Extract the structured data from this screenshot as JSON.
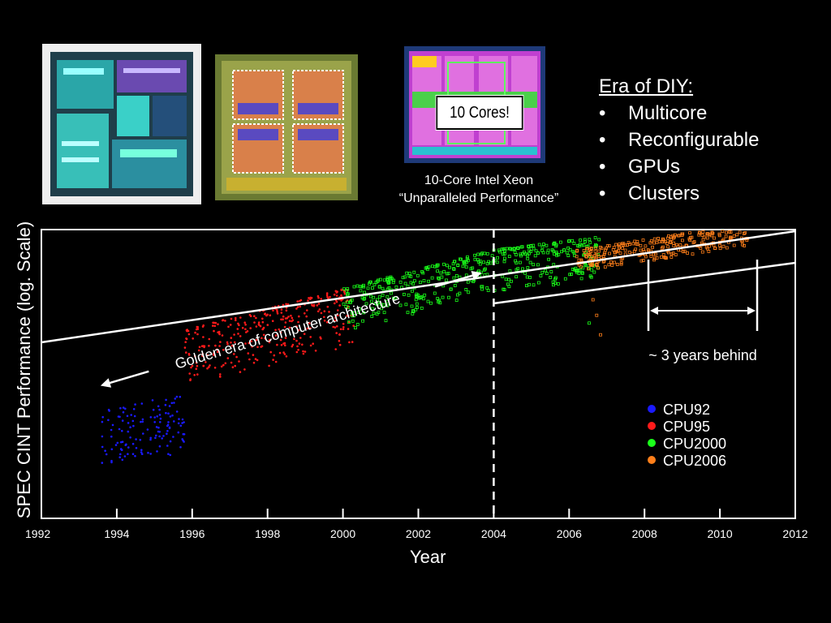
{
  "images": {
    "xeon_caption_line1": "10-Core Intel Xeon",
    "xeon_caption_line2": "“Unparalleled Performance”",
    "cores_callout": "10 Cores!"
  },
  "era": {
    "title": "Era of DIY:",
    "bullet_char": "•",
    "items": [
      "Multicore",
      "Reconfigurable",
      "GPUs",
      "Clusters"
    ]
  },
  "colors": {
    "background": "#000000",
    "CPU92": "#1a1aff",
    "CPU95": "#ff1a1a",
    "CPU2000": "#1aff1a",
    "CPU2006": "#ff7f1a"
  },
  "chart_data": {
    "type": "scatter",
    "title": "",
    "xlabel": "Year",
    "ylabel": "SPEC CINT Performance (log. Scale)",
    "xlim": [
      1992,
      2012
    ],
    "x_ticks": [
      1992,
      1994,
      1996,
      1998,
      2000,
      2002,
      2004,
      2006,
      2008,
      2010,
      2012
    ],
    "y_scale": "log",
    "y_ticks_shown": false,
    "grid": false,
    "legend_position": "lower-right",
    "series": [
      {
        "name": "CPU92",
        "x_range": [
          1993.6,
          1995.8
        ],
        "y_relative_range": [
          0.0,
          1.0
        ]
      },
      {
        "name": "CPU95",
        "x_range": [
          1995.8,
          2000.3
        ],
        "y_relative_range": [
          1.0,
          1.9
        ]
      },
      {
        "name": "CPU2000",
        "x_range": [
          2000.0,
          2006.8
        ],
        "y_relative_range": [
          1.8,
          2.7
        ]
      },
      {
        "name": "CPU2006",
        "x_range": [
          2006.2,
          2010.8
        ],
        "y_relative_range": [
          2.6,
          2.95
        ]
      }
    ],
    "trend_lines": [
      {
        "label": "Golden era of computer architecture",
        "x": [
          1992,
          2012
        ],
        "y_relative": [
          1.0,
          3.45
        ]
      },
      {
        "x": [
          2004,
          2012
        ],
        "y_relative": [
          2.38,
          2.86
        ]
      }
    ],
    "annotations": {
      "vertical_dashed_at_year": 2004,
      "golden_era": "Golden era of computer architecture",
      "gap_label": "~ 3 years behind",
      "gap_years": [
        2008,
        2011
      ]
    }
  }
}
